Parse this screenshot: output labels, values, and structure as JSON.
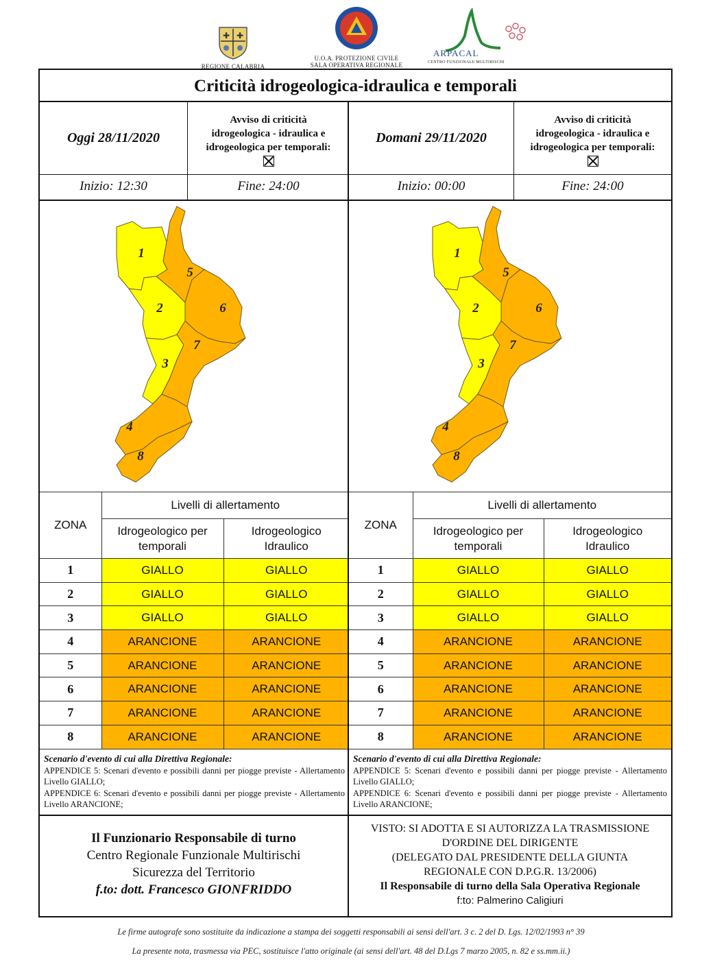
{
  "header": {
    "logo_calabria_caption": "REGIONE CALABRIA",
    "logo_pc_caption_1": "U.O.A. PROTEZIONE CIVILE",
    "logo_pc_caption_2": "SALA OPERATIVA REGIONALE",
    "logo_arpacal_name": "ARPACAL",
    "logo_arpacal_caption": "CENTRO FUNZIONALE MULTIRISCHI"
  },
  "title": "Criticità idrogeologica-idraulica e temporali",
  "days": [
    {
      "label": "Oggi 28/11/2020",
      "avviso": [
        "Avviso di criticità",
        "idrogeologica - idraulica e",
        "idrogeologica per temporali:"
      ],
      "inizio": "Inizio: 12:30",
      "fine": "Fine: 24:00"
    },
    {
      "label": "Domani 29/11/2020",
      "avviso": [
        "Avviso di criticità",
        "idrogeologica - idraulica e",
        "idrogeologica per temporali:"
      ],
      "inizio": "Inizio: 00:00",
      "fine": "Fine: 24:00"
    }
  ],
  "map_zone_labels": [
    "1",
    "2",
    "3",
    "4",
    "5",
    "6",
    "7",
    "8"
  ],
  "table": {
    "zona_header": "ZONA",
    "livelli_header": "Livelli di allertamento",
    "col1_header": [
      "Idrogeologico per",
      "temporali"
    ],
    "col2_header": [
      "Idrogeologico",
      "Idraulico"
    ],
    "rows": [
      {
        "zona": "1",
        "temporali": "GIALLO",
        "idraulico": "GIALLO"
      },
      {
        "zona": "2",
        "temporali": "GIALLO",
        "idraulico": "GIALLO"
      },
      {
        "zona": "3",
        "temporali": "GIALLO",
        "idraulico": "GIALLO"
      },
      {
        "zona": "4",
        "temporali": "ARANCIONE",
        "idraulico": "ARANCIONE"
      },
      {
        "zona": "5",
        "temporali": "ARANCIONE",
        "idraulico": "ARANCIONE"
      },
      {
        "zona": "6",
        "temporali": "ARANCIONE",
        "idraulico": "ARANCIONE"
      },
      {
        "zona": "7",
        "temporali": "ARANCIONE",
        "idraulico": "ARANCIONE"
      },
      {
        "zona": "8",
        "temporali": "ARANCIONE",
        "idraulico": "ARANCIONE"
      }
    ]
  },
  "colors": {
    "GIALLO": "#ffff00",
    "ARANCIONE": "#ffb300"
  },
  "scenario": {
    "heading": "Scenario d'evento di cui alla Direttiva Regionale:",
    "line1": "APPENDICE 5: Scenari d'evento e possibili danni per piogge previste - Allertamento Livello GIALLO;",
    "line2": "APPENDICE 6: Scenari d'evento e possibili danni per piogge previste - Allertamento Livello ARANCIONE;"
  },
  "footer_left": {
    "line1": "Il Funzionario Responsabile di turno",
    "line2": "Centro Regionale Funzionale Multirischi",
    "line3": "Sicurezza del Territorio",
    "line4": "f.to: dott. Francesco GIONFRIDDO"
  },
  "footer_right": {
    "line1": "VISTO: SI ADOTTA E SI AUTORIZZA LA TRASMISSIONE",
    "line2": "D'ORDINE DEL DIRIGENTE",
    "line3": "(DELEGATO DAL PRESIDENTE DELLA GIUNTA",
    "line4": "REGIONALE CON D.P.G.R. 13/2006)",
    "line5": "Il Responsabile di turno della Sala Operativa Regionale",
    "line6": "f:to: Palmerino Caligiuri"
  },
  "notes": {
    "line1": "Le firme autografe sono sostituite da indicazione a stampa dei soggetti responsabili ai sensi dell'art. 3 c. 2 del D. Lgs. 12/02/1993 n° 39",
    "line2": "La presente nota, trasmessa via PEC, sostituisce l'atto originale (ai sensi dell'art. 48 del D.Lgs 7 marzo 2005, n. 82 e ss.mm.ii.)"
  }
}
